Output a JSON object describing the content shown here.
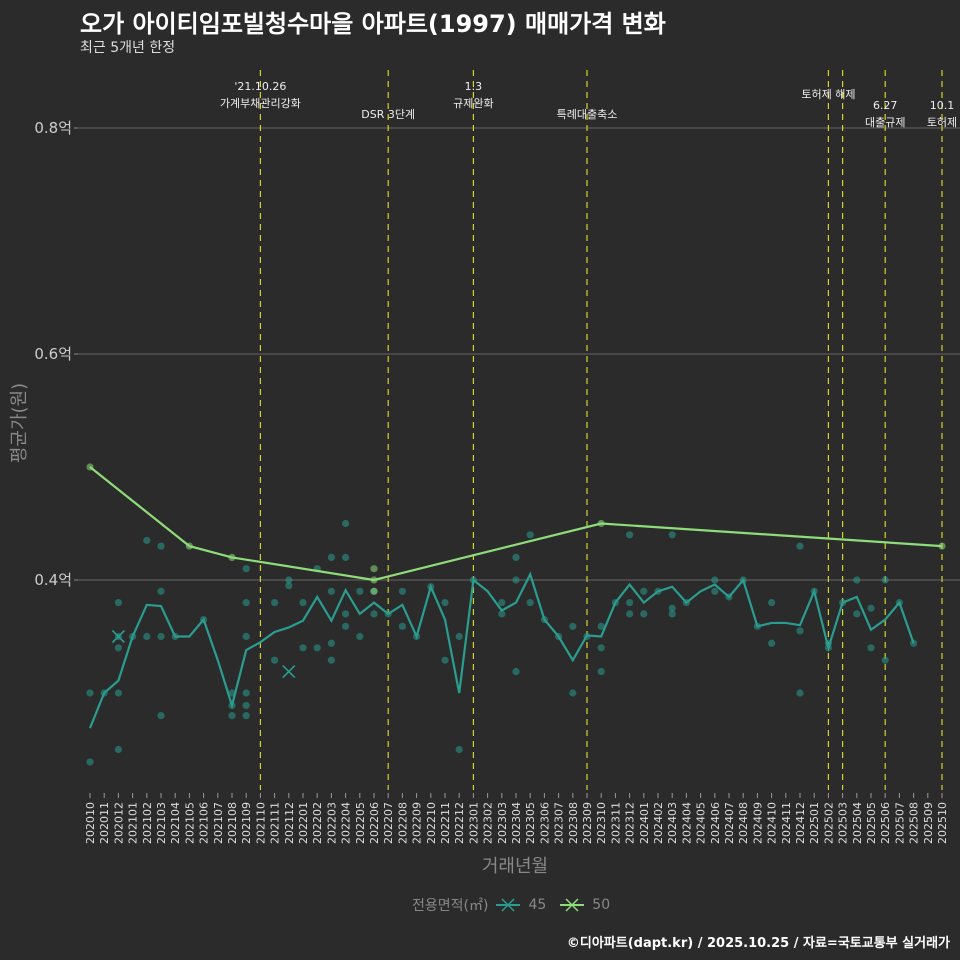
{
  "title": "오가 아이티임포빌청수마을 아파트(1997) 매매가격 변화",
  "subtitle": "최근 5개년 한정",
  "footer": "©디아파트(dapt.kr) / 2025.10.25 / 자료=국토교통부 실거래가",
  "chart_data": {
    "type": "line",
    "xlabel": "거래년월",
    "ylabel": "평균가(원)",
    "ylim": [
      0.214,
      0.865
    ],
    "yticks": [
      {
        "v": 0.4,
        "label": "0.4억"
      },
      {
        "v": 0.6,
        "label": "0.6억"
      },
      {
        "v": 0.8,
        "label": "0.8억"
      }
    ],
    "categories": [
      "202010",
      "202011",
      "202012",
      "202101",
      "202102",
      "202103",
      "202104",
      "202105",
      "202106",
      "202107",
      "202108",
      "202109",
      "202110",
      "202111",
      "202112",
      "202201",
      "202202",
      "202203",
      "202204",
      "202205",
      "202206",
      "202207",
      "202208",
      "202209",
      "202210",
      "202211",
      "202212",
      "202301",
      "202302",
      "202303",
      "202304",
      "202305",
      "202306",
      "202307",
      "202308",
      "202309",
      "202310",
      "202311",
      "202312",
      "202401",
      "202402",
      "202403",
      "202404",
      "202405",
      "202406",
      "202407",
      "202408",
      "202409",
      "202410",
      "202411",
      "202412",
      "202501",
      "202502",
      "202503",
      "202504",
      "202505",
      "202506",
      "202507",
      "202508",
      "202509",
      "202510"
    ],
    "legend": {
      "title": "전용면적(㎡)",
      "placement": "bottom"
    },
    "series": [
      {
        "name": "45",
        "color": "#2a9d8f",
        "line": [
          [
            0,
            0.269
          ],
          [
            1,
            0.3
          ],
          [
            2,
            0.311
          ],
          [
            3,
            0.35
          ],
          [
            4,
            0.378
          ],
          [
            5,
            0.377
          ],
          [
            6,
            0.35
          ],
          [
            7,
            0.35
          ],
          [
            8,
            0.365
          ],
          [
            9,
            0.329
          ],
          [
            10,
            0.289
          ],
          [
            11,
            0.338
          ],
          [
            12,
            0.345
          ],
          [
            13,
            0.354
          ],
          [
            14,
            0.358
          ],
          [
            15,
            0.364
          ],
          [
            16,
            0.385
          ],
          [
            17,
            0.364
          ],
          [
            18,
            0.391
          ],
          [
            19,
            0.37
          ],
          [
            20,
            0.38
          ],
          [
            21,
            0.37
          ],
          [
            22,
            0.378
          ],
          [
            23,
            0.35
          ],
          [
            24,
            0.394
          ],
          [
            25,
            0.365
          ],
          [
            26,
            0.3
          ],
          [
            27,
            0.4
          ],
          [
            28,
            0.39
          ],
          [
            29,
            0.373
          ],
          [
            30,
            0.38
          ],
          [
            31,
            0.405
          ],
          [
            32,
            0.365
          ],
          [
            33,
            0.35
          ],
          [
            34,
            0.329
          ],
          [
            35,
            0.351
          ],
          [
            36,
            0.35
          ],
          [
            37,
            0.38
          ],
          [
            38,
            0.396
          ],
          [
            39,
            0.38
          ],
          [
            40,
            0.39
          ],
          [
            41,
            0.394
          ],
          [
            42,
            0.38
          ],
          [
            43,
            0.39
          ],
          [
            44,
            0.396
          ],
          [
            45,
            0.385
          ],
          [
            46,
            0.4
          ],
          [
            47,
            0.359
          ],
          [
            48,
            0.362
          ],
          [
            49,
            0.362
          ],
          [
            50,
            0.36
          ],
          [
            51,
            0.39
          ],
          [
            52,
            0.34
          ],
          [
            53,
            0.38
          ],
          [
            54,
            0.385
          ],
          [
            55,
            0.356
          ],
          [
            56,
            0.365
          ],
          [
            57,
            0.38
          ],
          [
            58,
            0.344
          ]
        ],
        "points": [
          [
            0,
            0.3
          ],
          [
            0,
            0.239
          ],
          [
            1,
            0.3
          ],
          [
            2,
            0.38
          ],
          [
            2,
            0.35
          ],
          [
            2,
            0.34
          ],
          [
            2,
            0.3
          ],
          [
            2,
            0.25
          ],
          [
            3,
            0.35
          ],
          [
            4,
            0.435
          ],
          [
            4,
            0.35
          ],
          [
            5,
            0.43
          ],
          [
            5,
            0.39
          ],
          [
            5,
            0.35
          ],
          [
            5,
            0.28
          ],
          [
            6,
            0.35
          ],
          [
            8,
            0.365
          ],
          [
            10,
            0.3
          ],
          [
            10,
            0.289
          ],
          [
            10,
            0.28
          ],
          [
            11,
            0.41
          ],
          [
            11,
            0.38
          ],
          [
            11,
            0.35
          ],
          [
            11,
            0.3
          ],
          [
            11,
            0.289
          ],
          [
            11,
            0.28
          ],
          [
            13,
            0.38
          ],
          [
            13,
            0.329
          ],
          [
            14,
            0.4
          ],
          [
            14,
            0.395
          ],
          [
            15,
            0.38
          ],
          [
            15,
            0.34
          ],
          [
            16,
            0.41
          ],
          [
            16,
            0.34
          ],
          [
            17,
            0.42
          ],
          [
            17,
            0.39
          ],
          [
            17,
            0.344
          ],
          [
            17,
            0.329
          ],
          [
            18,
            0.45
          ],
          [
            18,
            0.42
          ],
          [
            18,
            0.37
          ],
          [
            18,
            0.359
          ],
          [
            19,
            0.39
          ],
          [
            19,
            0.35
          ],
          [
            20,
            0.39
          ],
          [
            20,
            0.37
          ],
          [
            21,
            0.37
          ],
          [
            22,
            0.39
          ],
          [
            22,
            0.359
          ],
          [
            23,
            0.35
          ],
          [
            24,
            0.394
          ],
          [
            25,
            0.38
          ],
          [
            25,
            0.329
          ],
          [
            26,
            0.35
          ],
          [
            26,
            0.25
          ],
          [
            27,
            0.4
          ],
          [
            29,
            0.38
          ],
          [
            29,
            0.37
          ],
          [
            30,
            0.42
          ],
          [
            30,
            0.4
          ],
          [
            30,
            0.319
          ],
          [
            31,
            0.44
          ],
          [
            31,
            0.38
          ],
          [
            32,
            0.365
          ],
          [
            33,
            0.35
          ],
          [
            34,
            0.359
          ],
          [
            34,
            0.3
          ],
          [
            35,
            0.35
          ],
          [
            36,
            0.359
          ],
          [
            36,
            0.34
          ],
          [
            36,
            0.319
          ],
          [
            37,
            0.38
          ],
          [
            38,
            0.44
          ],
          [
            38,
            0.38
          ],
          [
            38,
            0.37
          ],
          [
            39,
            0.39
          ],
          [
            39,
            0.37
          ],
          [
            40,
            0.39
          ],
          [
            41,
            0.44
          ],
          [
            41,
            0.375
          ],
          [
            41,
            0.37
          ],
          [
            42,
            0.38
          ],
          [
            44,
            0.4
          ],
          [
            44,
            0.39
          ],
          [
            45,
            0.385
          ],
          [
            46,
            0.4
          ],
          [
            47,
            0.359
          ],
          [
            48,
            0.38
          ],
          [
            48,
            0.344
          ],
          [
            50,
            0.43
          ],
          [
            50,
            0.355
          ],
          [
            50,
            0.3
          ],
          [
            51,
            0.39
          ],
          [
            52,
            0.344
          ],
          [
            52,
            0.34
          ],
          [
            53,
            0.38
          ],
          [
            54,
            0.4
          ],
          [
            54,
            0.37
          ],
          [
            55,
            0.375
          ],
          [
            55,
            0.34
          ],
          [
            56,
            0.4
          ],
          [
            56,
            0.329
          ],
          [
            57,
            0.38
          ],
          [
            58,
            0.344
          ]
        ],
        "markers_x": [
          [
            2,
            0.35
          ],
          [
            14,
            0.319
          ]
        ]
      },
      {
        "name": "50",
        "color": "#8fdc7a",
        "line": [
          [
            0,
            0.5
          ],
          [
            7,
            0.43
          ],
          [
            10,
            0.42
          ],
          [
            20,
            0.4
          ],
          [
            36,
            0.45
          ],
          [
            60,
            0.43
          ]
        ],
        "points": [
          [
            0,
            0.5
          ],
          [
            7,
            0.43
          ],
          [
            10,
            0.42
          ],
          [
            20,
            0.41
          ],
          [
            20,
            0.39
          ],
          [
            20,
            0.4
          ],
          [
            36,
            0.45
          ],
          [
            60,
            0.43
          ]
        ]
      }
    ],
    "events": [
      {
        "x": 12,
        "lines": [
          "'21.10.26",
          "가계부채관리강화"
        ]
      },
      {
        "x": 21,
        "lines": [
          "DSR 3단계"
        ]
      },
      {
        "x": 27,
        "lines": [
          "1.3",
          "규제완화"
        ]
      },
      {
        "x": 35,
        "lines": [
          "특례대출축소"
        ]
      },
      {
        "x": 52,
        "lines": [
          "토허제 해제"
        ]
      },
      {
        "x": 53,
        "lines": []
      },
      {
        "x": 56,
        "lines": [
          "6.27",
          "대출규제"
        ]
      },
      {
        "x": 60,
        "lines": [
          "10.1",
          "토허제"
        ]
      }
    ]
  }
}
